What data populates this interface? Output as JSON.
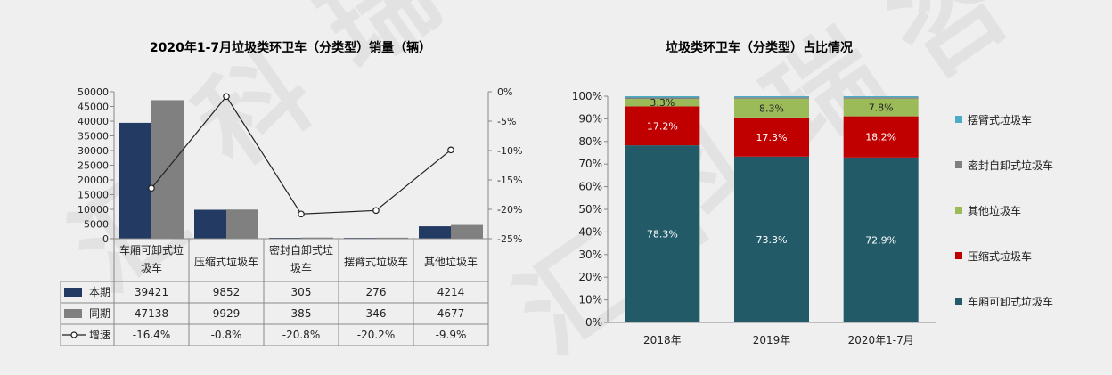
{
  "chart_data": [
    {
      "type": "bar",
      "title": "2020年1-7月垃圾类环卫车（分类型）销量（辆）",
      "categories": [
        "车厢可卸式垃圾车",
        "压缩式垃圾车",
        "密封自卸式垃圾车",
        "摆臂式垃圾车",
        "其他垃圾车"
      ],
      "category_lines": [
        [
          "车厢可卸式垃",
          "圾车"
        ],
        [
          "压缩式垃圾车"
        ],
        [
          "密封自卸式垃",
          "圾车"
        ],
        [
          "摆臂式垃圾车"
        ],
        [
          "其他垃圾车"
        ]
      ],
      "series": [
        {
          "name": "本期",
          "kind": "bar",
          "axis": "left",
          "color": "#233a63",
          "values": [
            39421,
            9852,
            305,
            276,
            4214
          ],
          "labels": [
            "39421",
            "9852",
            "305",
            "276",
            "4214"
          ]
        },
        {
          "name": "同期",
          "kind": "bar",
          "axis": "left",
          "color": "#808080",
          "values": [
            47138,
            9929,
            385,
            346,
            4677
          ],
          "labels": [
            "47138",
            "9929",
            "385",
            "346",
            "4677"
          ]
        },
        {
          "name": "增速",
          "kind": "line",
          "axis": "right",
          "color": "#222222",
          "values": [
            -16.4,
            -0.8,
            -20.8,
            -20.2,
            -9.9
          ],
          "labels": [
            "-16.4%",
            "-0.8%",
            "-20.8%",
            "-20.2%",
            "-9.9%"
          ]
        }
      ],
      "left_axis": {
        "min": 0,
        "max": 50000,
        "ticks": [
          "0",
          "5000",
          "10000",
          "15000",
          "20000",
          "25000",
          "30000",
          "35000",
          "40000",
          "45000",
          "50000"
        ]
      },
      "right_axis": {
        "min": -25,
        "max": 0,
        "ticks": [
          "-25%",
          "-20%",
          "-15%",
          "-10%",
          "-5%",
          "0%"
        ]
      },
      "data_table": true,
      "grid": false
    },
    {
      "type": "bar",
      "stacked": true,
      "title": "垃圾类环卫车（分类型）占比情况",
      "categories": [
        "2018年",
        "2019年",
        "2020年1-7月"
      ],
      "y_axis": {
        "min": 0,
        "max": 100,
        "ticks": [
          "0%",
          "10%",
          "20%",
          "30%",
          "40%",
          "50%",
          "60%",
          "70%",
          "80%",
          "90%",
          "100%"
        ]
      },
      "series": [
        {
          "name": "车厢可卸式垃圾车",
          "color": "#235a68",
          "values": [
            78.3,
            73.3,
            72.9
          ],
          "labels": [
            "78.3%",
            "73.3%",
            "72.9%"
          ]
        },
        {
          "name": "压缩式垃圾车",
          "color": "#c00000",
          "values": [
            17.2,
            17.3,
            18.2
          ],
          "labels": [
            "17.2%",
            "17.3%",
            "18.2%"
          ]
        },
        {
          "name": "其他垃圾车",
          "color": "#9bbb59",
          "values": [
            3.3,
            8.3,
            7.8
          ],
          "labels": [
            "3.3%",
            "8.3%",
            "7.8%"
          ]
        },
        {
          "name": "密封自卸式垃圾车",
          "color": "#7f7f7f",
          "values": [
            0.6,
            0.6,
            0.6
          ]
        },
        {
          "name": "摆臂式垃圾车",
          "color": "#4bacc6",
          "values": [
            0.6,
            0.5,
            0.5
          ]
        }
      ],
      "legend_order": [
        "摆臂式垃圾车",
        "密封自卸式垃圾车",
        "其他垃圾车",
        "压缩式垃圾车",
        "车厢可卸式垃圾车"
      ],
      "legend_position": "right",
      "grid": false
    }
  ]
}
